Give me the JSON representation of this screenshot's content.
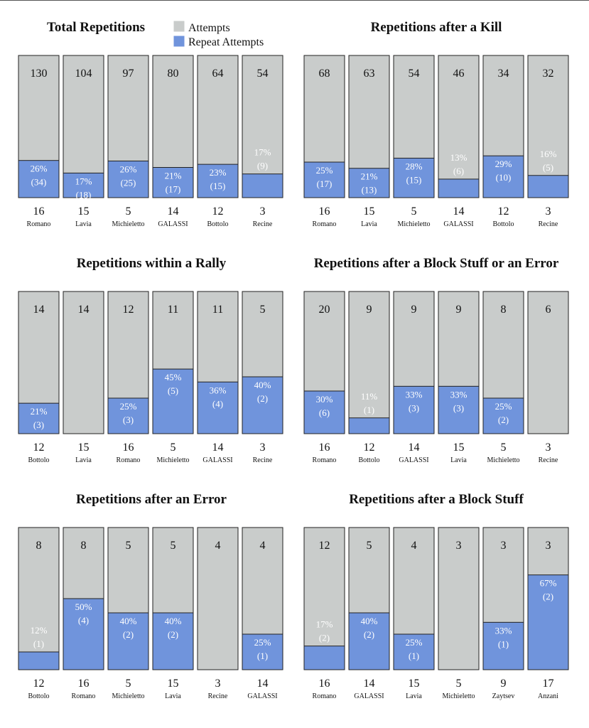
{
  "legend": {
    "attempts_label": "Attempts",
    "repeat_label": "Repeat Attempts"
  },
  "colors": {
    "attempts": "#c9cccb",
    "repeat": "#7094dc",
    "outline": "#222222",
    "label_on_gray": "#ffffff",
    "label_on_blue": "#ffffff"
  },
  "chart_data": [
    {
      "type": "bar",
      "title": "Total Repetitions",
      "categories": [
        "Romano",
        "Lavia",
        "Michieletto",
        "GALASSI",
        "Bottolo",
        "Recine"
      ],
      "numbers": [
        "16",
        "15",
        "5",
        "14",
        "12",
        "3"
      ],
      "series": [
        {
          "name": "Attempts",
          "values": [
            130,
            104,
            97,
            80,
            64,
            54
          ]
        },
        {
          "name": "Repeat Attempts",
          "values": [
            34,
            18,
            25,
            17,
            15,
            9
          ]
        }
      ],
      "percent_labels": [
        "26%",
        "17%",
        "26%",
        "21%",
        "23%",
        "17%"
      ],
      "count_labels": [
        "(34)",
        "(18)",
        "(25)",
        "(17)",
        "(15)",
        "(9)"
      ]
    },
    {
      "type": "bar",
      "title": "Repetitions after a Kill",
      "categories": [
        "Romano",
        "Lavia",
        "Michieletto",
        "GALASSI",
        "Bottolo",
        "Recine"
      ],
      "numbers": [
        "16",
        "15",
        "5",
        "14",
        "12",
        "3"
      ],
      "series": [
        {
          "name": "Attempts",
          "values": [
            68,
            63,
            54,
            46,
            34,
            32
          ]
        },
        {
          "name": "Repeat Attempts",
          "values": [
            17,
            13,
            15,
            6,
            10,
            5
          ]
        }
      ],
      "percent_labels": [
        "25%",
        "21%",
        "28%",
        "13%",
        "29%",
        "16%"
      ],
      "count_labels": [
        "(17)",
        "(13)",
        "(15)",
        "(6)",
        "(10)",
        "(5)"
      ]
    },
    {
      "type": "bar",
      "title": "Repetitions within a Rally",
      "categories": [
        "Bottolo",
        "Lavia",
        "Romano",
        "Michieletto",
        "GALASSI",
        "Recine"
      ],
      "numbers": [
        "12",
        "15",
        "16",
        "5",
        "14",
        "3"
      ],
      "series": [
        {
          "name": "Attempts",
          "values": [
            14,
            14,
            12,
            11,
            11,
            5
          ]
        },
        {
          "name": "Repeat Attempts",
          "values": [
            3,
            0,
            3,
            5,
            4,
            2
          ]
        }
      ],
      "percent_labels": [
        "21%",
        "",
        "25%",
        "45%",
        "36%",
        "40%"
      ],
      "count_labels": [
        "(3)",
        "",
        "(3)",
        "(5)",
        "(4)",
        "(2)"
      ]
    },
    {
      "type": "bar",
      "title": "Repetitions after a Block Stuff or an Error",
      "categories": [
        "Romano",
        "Bottolo",
        "GALASSI",
        "Lavia",
        "Michieletto",
        "Recine"
      ],
      "numbers": [
        "16",
        "12",
        "14",
        "15",
        "5",
        "3"
      ],
      "series": [
        {
          "name": "Attempts",
          "values": [
            20,
            9,
            9,
            9,
            8,
            6
          ]
        },
        {
          "name": "Repeat Attempts",
          "values": [
            6,
            1,
            3,
            3,
            2,
            0
          ]
        }
      ],
      "percent_labels": [
        "30%",
        "11%",
        "33%",
        "33%",
        "25%",
        ""
      ],
      "count_labels": [
        "(6)",
        "(1)",
        "(3)",
        "(3)",
        "(2)",
        ""
      ]
    },
    {
      "type": "bar",
      "title": "Repetitions after an Error",
      "categories": [
        "Bottolo",
        "Romano",
        "Michieletto",
        "Lavia",
        "Recine",
        "GALASSI"
      ],
      "numbers": [
        "12",
        "16",
        "5",
        "15",
        "3",
        "14"
      ],
      "series": [
        {
          "name": "Attempts",
          "values": [
            8,
            8,
            5,
            5,
            4,
            4
          ]
        },
        {
          "name": "Repeat Attempts",
          "values": [
            1,
            4,
            2,
            2,
            0,
            1
          ]
        }
      ],
      "percent_labels": [
        "12%",
        "50%",
        "40%",
        "40%",
        "",
        "25%"
      ],
      "count_labels": [
        "(1)",
        "(4)",
        "(2)",
        "(2)",
        "",
        "(1)"
      ]
    },
    {
      "type": "bar",
      "title": "Repetitions after a Block Stuff",
      "categories": [
        "Romano",
        "GALASSI",
        "Lavia",
        "Michieletto",
        "Zaytsev",
        "Anzani"
      ],
      "numbers": [
        "16",
        "14",
        "15",
        "5",
        "9",
        "17"
      ],
      "series": [
        {
          "name": "Attempts",
          "values": [
            12,
            5,
            4,
            3,
            3,
            3
          ]
        },
        {
          "name": "Repeat Attempts",
          "values": [
            2,
            2,
            1,
            0,
            1,
            2
          ]
        }
      ],
      "percent_labels": [
        "17%",
        "40%",
        "25%",
        "",
        "33%",
        "67%"
      ],
      "count_labels": [
        "(2)",
        "(2)",
        "(1)",
        "",
        "(1)",
        "(2)"
      ]
    }
  ]
}
